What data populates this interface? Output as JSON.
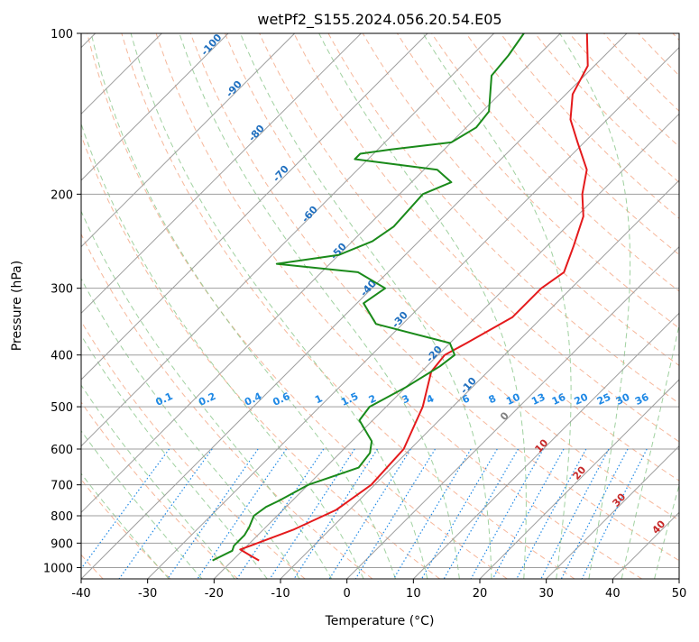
{
  "chart_data": {
    "type": "skew-t",
    "title": "wetPf2_S155.2024.056.20.54.E05",
    "xlabel": "Temperature (°C)",
    "ylabel": "Pressure (hPa)",
    "xlim": [
      -40,
      50
    ],
    "ylim_hpa": [
      1050,
      100
    ],
    "log_pressure_axis": true,
    "grid": true,
    "x_ticks": [
      -40,
      -30,
      -20,
      -10,
      0,
      10,
      20,
      30,
      40,
      50
    ],
    "y_ticks": [
      100,
      200,
      300,
      400,
      500,
      600,
      700,
      800,
      900,
      1000
    ],
    "series": [
      {
        "kind": "temperature",
        "color": "#e41a1c",
        "points": [
          {
            "p": 970,
            "t": -16.0
          },
          {
            "p": 945,
            "t": -18.5
          },
          {
            "p": 925,
            "t": -20.5
          },
          {
            "p": 910,
            "t": -19.5
          },
          {
            "p": 850,
            "t": -15.5
          },
          {
            "p": 780,
            "t": -12.0
          },
          {
            "p": 700,
            "t": -10.5
          },
          {
            "p": 600,
            "t": -11.0
          },
          {
            "p": 500,
            "t": -14.5
          },
          {
            "p": 430,
            "t": -18.5
          },
          {
            "p": 400,
            "t": -19.0
          },
          {
            "p": 380,
            "t": -17.5
          },
          {
            "p": 340,
            "t": -14.5
          },
          {
            "p": 300,
            "t": -14.5
          },
          {
            "p": 280,
            "t": -13.5
          },
          {
            "p": 250,
            "t": -16.0
          },
          {
            "p": 220,
            "t": -19.0
          },
          {
            "p": 200,
            "t": -22.5
          },
          {
            "p": 180,
            "t": -25.5
          },
          {
            "p": 160,
            "t": -31.0
          },
          {
            "p": 145,
            "t": -35.5
          },
          {
            "p": 130,
            "t": -39.0
          },
          {
            "p": 115,
            "t": -41.0
          },
          {
            "p": 100,
            "t": -46.0
          }
        ]
      },
      {
        "kind": "dewpoint",
        "color": "#1a8a1a",
        "points": [
          {
            "p": 970,
            "t": -23.0
          },
          {
            "p": 930,
            "t": -21.5
          },
          {
            "p": 910,
            "t": -22.0
          },
          {
            "p": 870,
            "t": -22.0
          },
          {
            "p": 840,
            "t": -22.5
          },
          {
            "p": 800,
            "t": -23.5
          },
          {
            "p": 770,
            "t": -23.0
          },
          {
            "p": 750,
            "t": -22.0
          },
          {
            "p": 700,
            "t": -20.0
          },
          {
            "p": 650,
            "t": -15.0
          },
          {
            "p": 610,
            "t": -15.5
          },
          {
            "p": 580,
            "t": -17.0
          },
          {
            "p": 530,
            "t": -22.0
          },
          {
            "p": 500,
            "t": -22.5
          },
          {
            "p": 460,
            "t": -20.0
          },
          {
            "p": 420,
            "t": -18.0
          },
          {
            "p": 400,
            "t": -17.5
          },
          {
            "p": 380,
            "t": -20.0
          },
          {
            "p": 350,
            "t": -34.0
          },
          {
            "p": 320,
            "t": -39.0
          },
          {
            "p": 300,
            "t": -38.0
          },
          {
            "p": 280,
            "t": -44.5
          },
          {
            "p": 270,
            "t": -58.0
          },
          {
            "p": 260,
            "t": -50.0
          },
          {
            "p": 245,
            "t": -47.0
          },
          {
            "p": 230,
            "t": -46.0
          },
          {
            "p": 200,
            "t": -46.5
          },
          {
            "p": 190,
            "t": -44.0
          },
          {
            "p": 180,
            "t": -48.0
          },
          {
            "p": 172,
            "t": -62.0
          },
          {
            "p": 168,
            "t": -62.0
          },
          {
            "p": 165,
            "t": -58.0
          },
          {
            "p": 160,
            "t": -50.0
          },
          {
            "p": 150,
            "t": -48.5
          },
          {
            "p": 140,
            "t": -49.0
          },
          {
            "p": 120,
            "t": -54.0
          },
          {
            "p": 110,
            "t": -54.5
          },
          {
            "p": 100,
            "t": -55.5
          }
        ]
      }
    ],
    "dry_adiabat_labels": [
      -100,
      -90,
      -80,
      -70,
      -60,
      -50,
      -40,
      -30,
      -20,
      -10,
      0,
      10,
      20,
      30,
      40
    ],
    "mixing_ratio_labels": [
      "0.1",
      "0.2",
      "0.4",
      "0.6",
      "1",
      "1.5",
      "2",
      "3",
      "4",
      "6",
      "8",
      "10",
      "13",
      "16",
      "20",
      "25",
      "30",
      "36"
    ],
    "colors": {
      "isotherm": "#9e9e9e",
      "isobar": "#9e9e9e",
      "dry_adiabat": "#f4a582",
      "moist_adiabat": "#8fc98f",
      "mixing_ratio": "#1e88e5",
      "label_blue": "#1f6fbf",
      "label_red": "#c62828"
    }
  }
}
